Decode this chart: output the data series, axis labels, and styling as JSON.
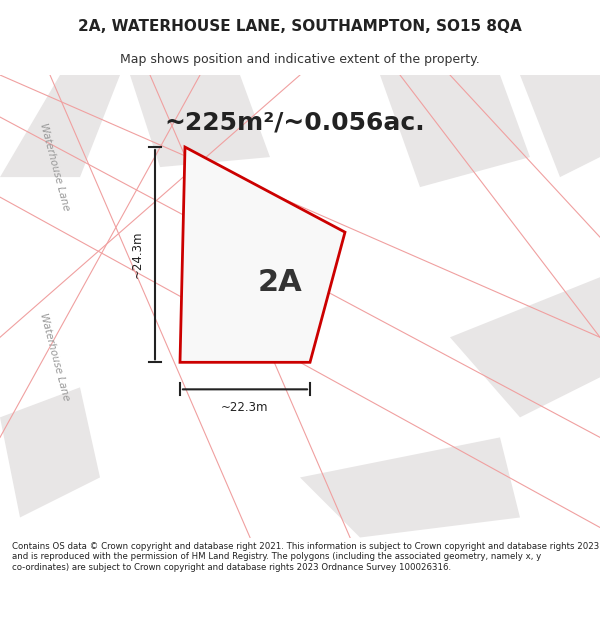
{
  "title_line1": "2A, WATERHOUSE LANE, SOUTHAMPTON, SO15 8QA",
  "title_line2": "Map shows position and indicative extent of the property.",
  "area_text": "~225m²/~0.056ac.",
  "label_2a": "2A",
  "dim_vertical": "~24.3m",
  "dim_horizontal": "~22.3m",
  "footer_text": "Contains OS data © Crown copyright and database right 2021. This information is subject to Crown copyright and database rights 2023 and is reproduced with the permission of HM Land Registry. The polygons (including the associated geometry, namely x, y co-ordinates) are subject to Crown copyright and database rights 2023 Ordnance Survey 100026316.",
  "bg_color": "#f5f5f5",
  "map_bg": "#f0eeee",
  "property_fill": "#f5f5f5",
  "property_edge": "#cc0000",
  "road_label": "Waterhouse Lane",
  "background_lines_color": "#f0a0a0",
  "white_block_color": "#e8e6e6"
}
